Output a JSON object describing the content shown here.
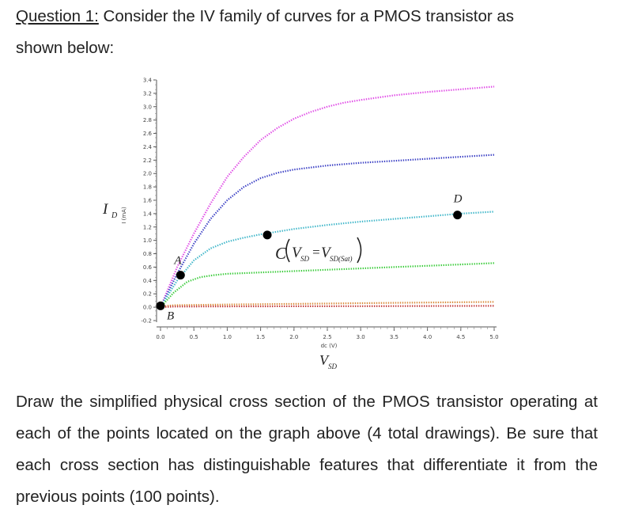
{
  "question": {
    "label": "Question 1:",
    "text_line1": " Consider the IV family of curves for a PMOS transistor as",
    "text_line2": "shown below:"
  },
  "instructions": "Draw the simplified physical cross section of the PMOS transistor operating at each of the points located on the graph above (4 total drawings). Be sure that each cross section has distinguishable features that differentiate it from the previous points (100 points).",
  "chart_data": {
    "type": "line",
    "ylabel": "I (mA)",
    "xlabel": "dc (V)",
    "y_symbol": "I",
    "y_symbol_sub": "D",
    "x_symbol": "V",
    "x_symbol_sub": "SD",
    "xlim": [
      0,
      5.0
    ],
    "ylim": [
      -0.2,
      3.4
    ],
    "x_ticks": [
      "0.0",
      "0.5",
      "1.0",
      "1.5",
      "2.0",
      "2.5",
      "3.0",
      "3.5",
      "4.0",
      "4.5",
      "5.0"
    ],
    "y_ticks": [
      "-0.2",
      "0.0",
      "0.2",
      "0.4",
      "0.6",
      "0.8",
      "1.0",
      "1.2",
      "1.4",
      "1.6",
      "1.8",
      "2.0",
      "2.2",
      "2.4",
      "2.6",
      "2.8",
      "3.0",
      "3.2",
      "3.4"
    ],
    "series": [
      {
        "color": "#e04ce6",
        "x": [
          0,
          0.25,
          0.5,
          0.75,
          1.0,
          1.25,
          1.5,
          1.75,
          2.0,
          2.25,
          2.5,
          2.75,
          3.0,
          3.5,
          4.0,
          4.5,
          5.0
        ],
        "values": [
          0,
          0.6,
          1.1,
          1.55,
          1.95,
          2.25,
          2.5,
          2.68,
          2.82,
          2.92,
          3.0,
          3.06,
          3.1,
          3.17,
          3.22,
          3.26,
          3.3
        ]
      },
      {
        "color": "#3a3fc4",
        "x": [
          0,
          0.25,
          0.5,
          0.75,
          1.0,
          1.25,
          1.5,
          1.75,
          2.0,
          2.5,
          3.0,
          3.5,
          4.0,
          4.5,
          5.0
        ],
        "values": [
          0,
          0.5,
          0.95,
          1.32,
          1.6,
          1.8,
          1.93,
          2.01,
          2.06,
          2.12,
          2.16,
          2.19,
          2.22,
          2.25,
          2.28
        ]
      },
      {
        "color": "#3fb6c9",
        "x": [
          0,
          0.25,
          0.5,
          0.75,
          1.0,
          1.25,
          1.5,
          2.0,
          2.5,
          3.0,
          3.5,
          4.0,
          4.5,
          5.0
        ],
        "values": [
          0,
          0.4,
          0.7,
          0.88,
          0.98,
          1.04,
          1.09,
          1.17,
          1.23,
          1.28,
          1.32,
          1.36,
          1.4,
          1.43
        ]
      },
      {
        "color": "#3ccc3c",
        "x": [
          0,
          0.2,
          0.4,
          0.6,
          0.8,
          1.0,
          1.5,
          2.0,
          2.5,
          3.0,
          3.5,
          4.0,
          4.5,
          5.0
        ],
        "values": [
          0,
          0.22,
          0.38,
          0.45,
          0.48,
          0.5,
          0.52,
          0.54,
          0.56,
          0.58,
          0.6,
          0.62,
          0.64,
          0.66
        ]
      },
      {
        "color": "#d98a3a",
        "x": [
          0,
          0.1,
          0.2,
          1.0,
          2.0,
          3.0,
          4.0,
          5.0
        ],
        "values": [
          0,
          0.02,
          0.03,
          0.04,
          0.05,
          0.06,
          0.07,
          0.08
        ]
      },
      {
        "color": "#c23a3a",
        "x": [
          0,
          0.1,
          0.2,
          1.0,
          2.0,
          3.0,
          4.0,
          5.0
        ],
        "values": [
          0,
          0.005,
          0.01,
          0.012,
          0.014,
          0.016,
          0.018,
          0.02
        ]
      }
    ],
    "points": [
      {
        "label": "A",
        "x": 0.3,
        "y": 0.48
      },
      {
        "label": "B",
        "x": 0.0,
        "y": 0.02
      },
      {
        "label": "C",
        "x": 1.6,
        "y": 1.08
      },
      {
        "label": "D",
        "x": 4.45,
        "y": 1.38
      }
    ],
    "annotation": {
      "lead": "C",
      "lhs": "V",
      "lhs_sub": "SD",
      "eq": "=",
      "rhs": "V",
      "rhs_sub": "SD(Sat)"
    }
  }
}
